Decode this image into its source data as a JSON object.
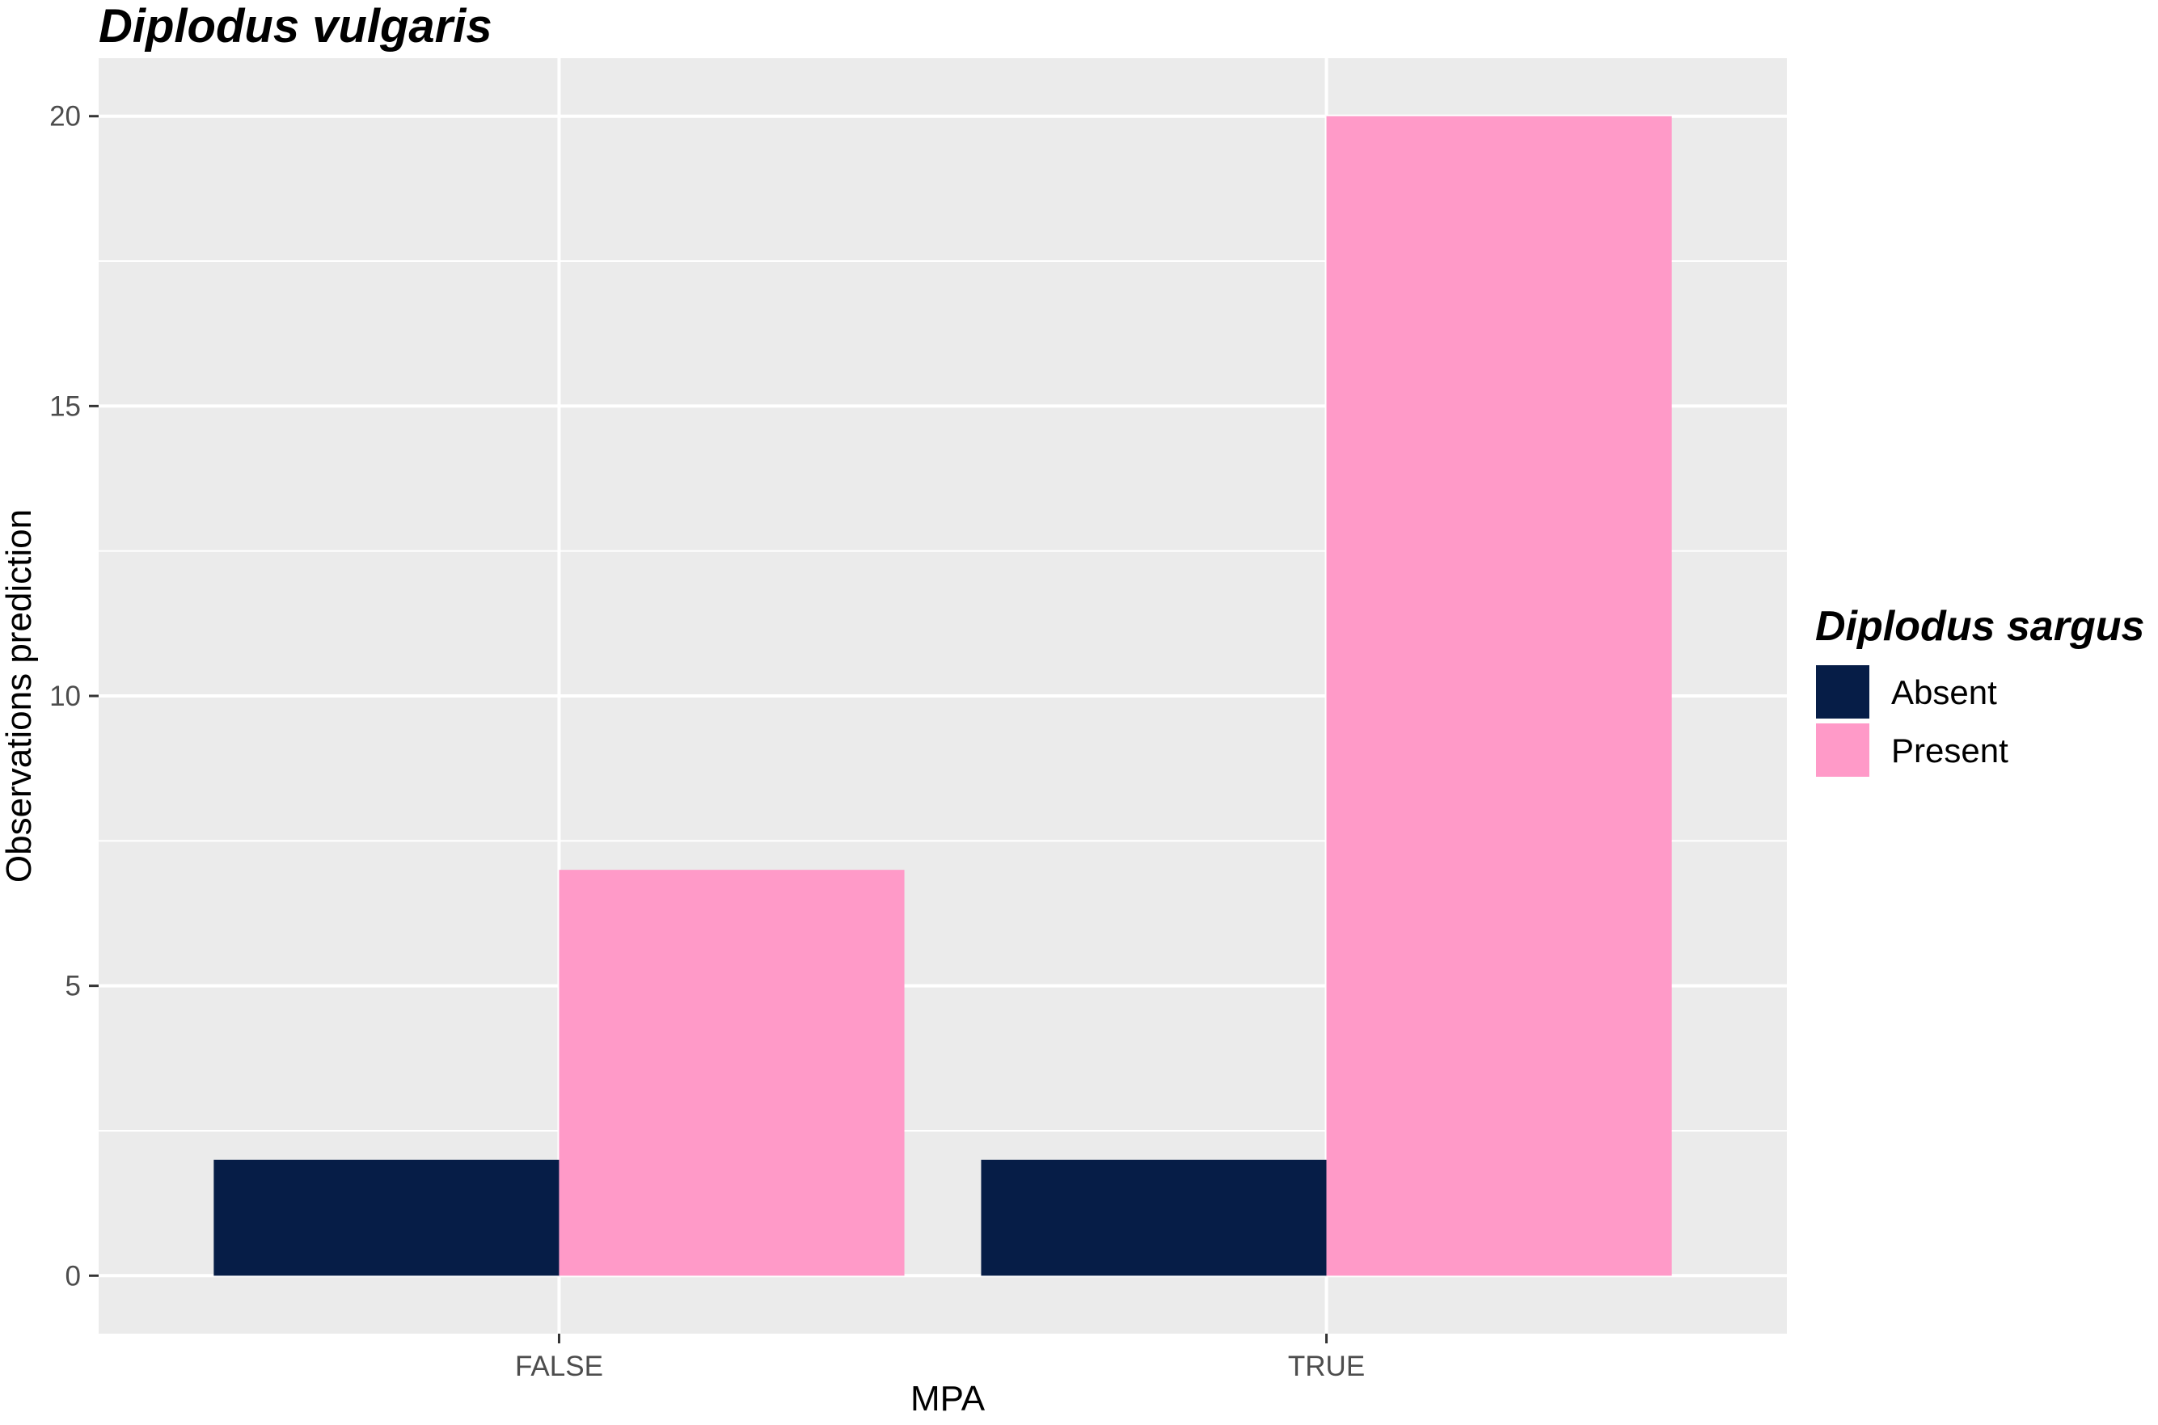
{
  "chart_data": {
    "type": "bar",
    "title": "Diplodus vulgaris",
    "xlabel": "MPA",
    "ylabel": "Observations prediction",
    "categories": [
      "FALSE",
      "TRUE"
    ],
    "series": [
      {
        "name": "Absent",
        "values": [
          2,
          2
        ],
        "color": "#061D47"
      },
      {
        "name": "Present",
        "values": [
          7,
          20
        ],
        "color": "#FF9AC8"
      }
    ],
    "ylim": [
      -1,
      21
    ],
    "yticks": [
      0,
      5,
      10,
      15,
      20
    ],
    "grid": true,
    "legend": {
      "title": "Diplodus sargus",
      "placement": "right"
    },
    "panel_color": "#EBEBEB"
  }
}
